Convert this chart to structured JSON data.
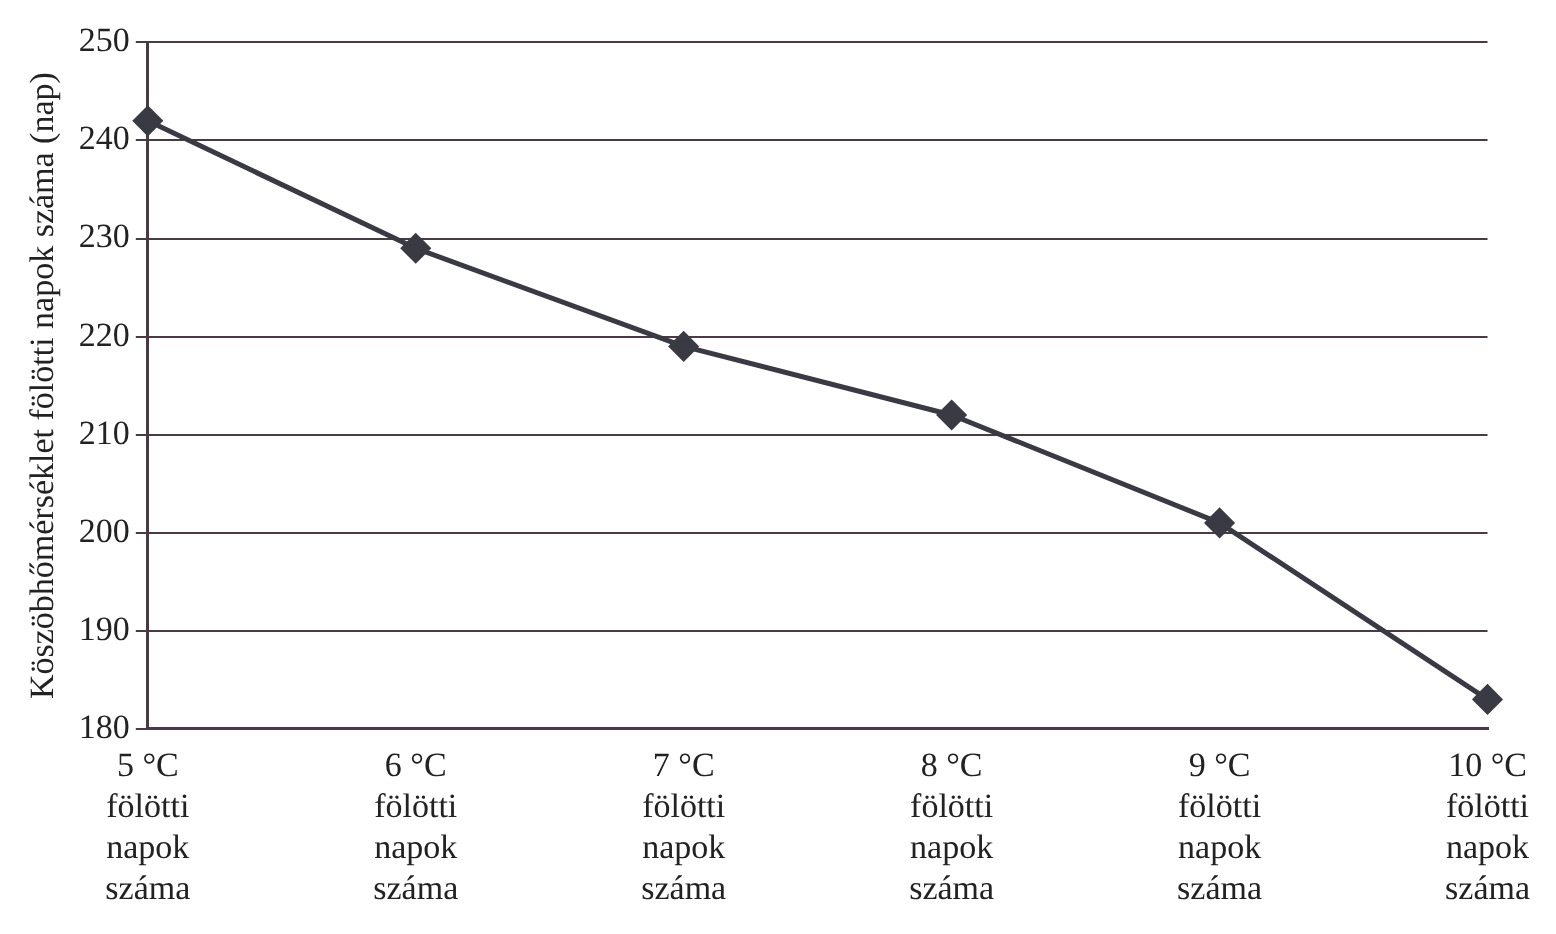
{
  "chart_data": {
    "type": "line",
    "ylabel": "Köszöbhőmérséklet fölötti napok száma (nap)",
    "categories": [
      "5 °C fölötti napok száma",
      "6 °C fölötti napok száma",
      "7 °C fölötti napok száma",
      "8 °C fölötti napok száma",
      "9 °C fölötti napok száma",
      "10 °C fölötti napok száma"
    ],
    "series": [
      {
        "color": "#3a3a44",
        "values": [
          242,
          229,
          219,
          212,
          201,
          183
        ]
      }
    ],
    "ylim": [
      180,
      250
    ],
    "yticks": [
      180,
      190,
      200,
      210,
      220,
      230,
      240,
      250
    ],
    "grid": "y",
    "legend": false,
    "marker": "diamond",
    "line_style": "solid"
  }
}
